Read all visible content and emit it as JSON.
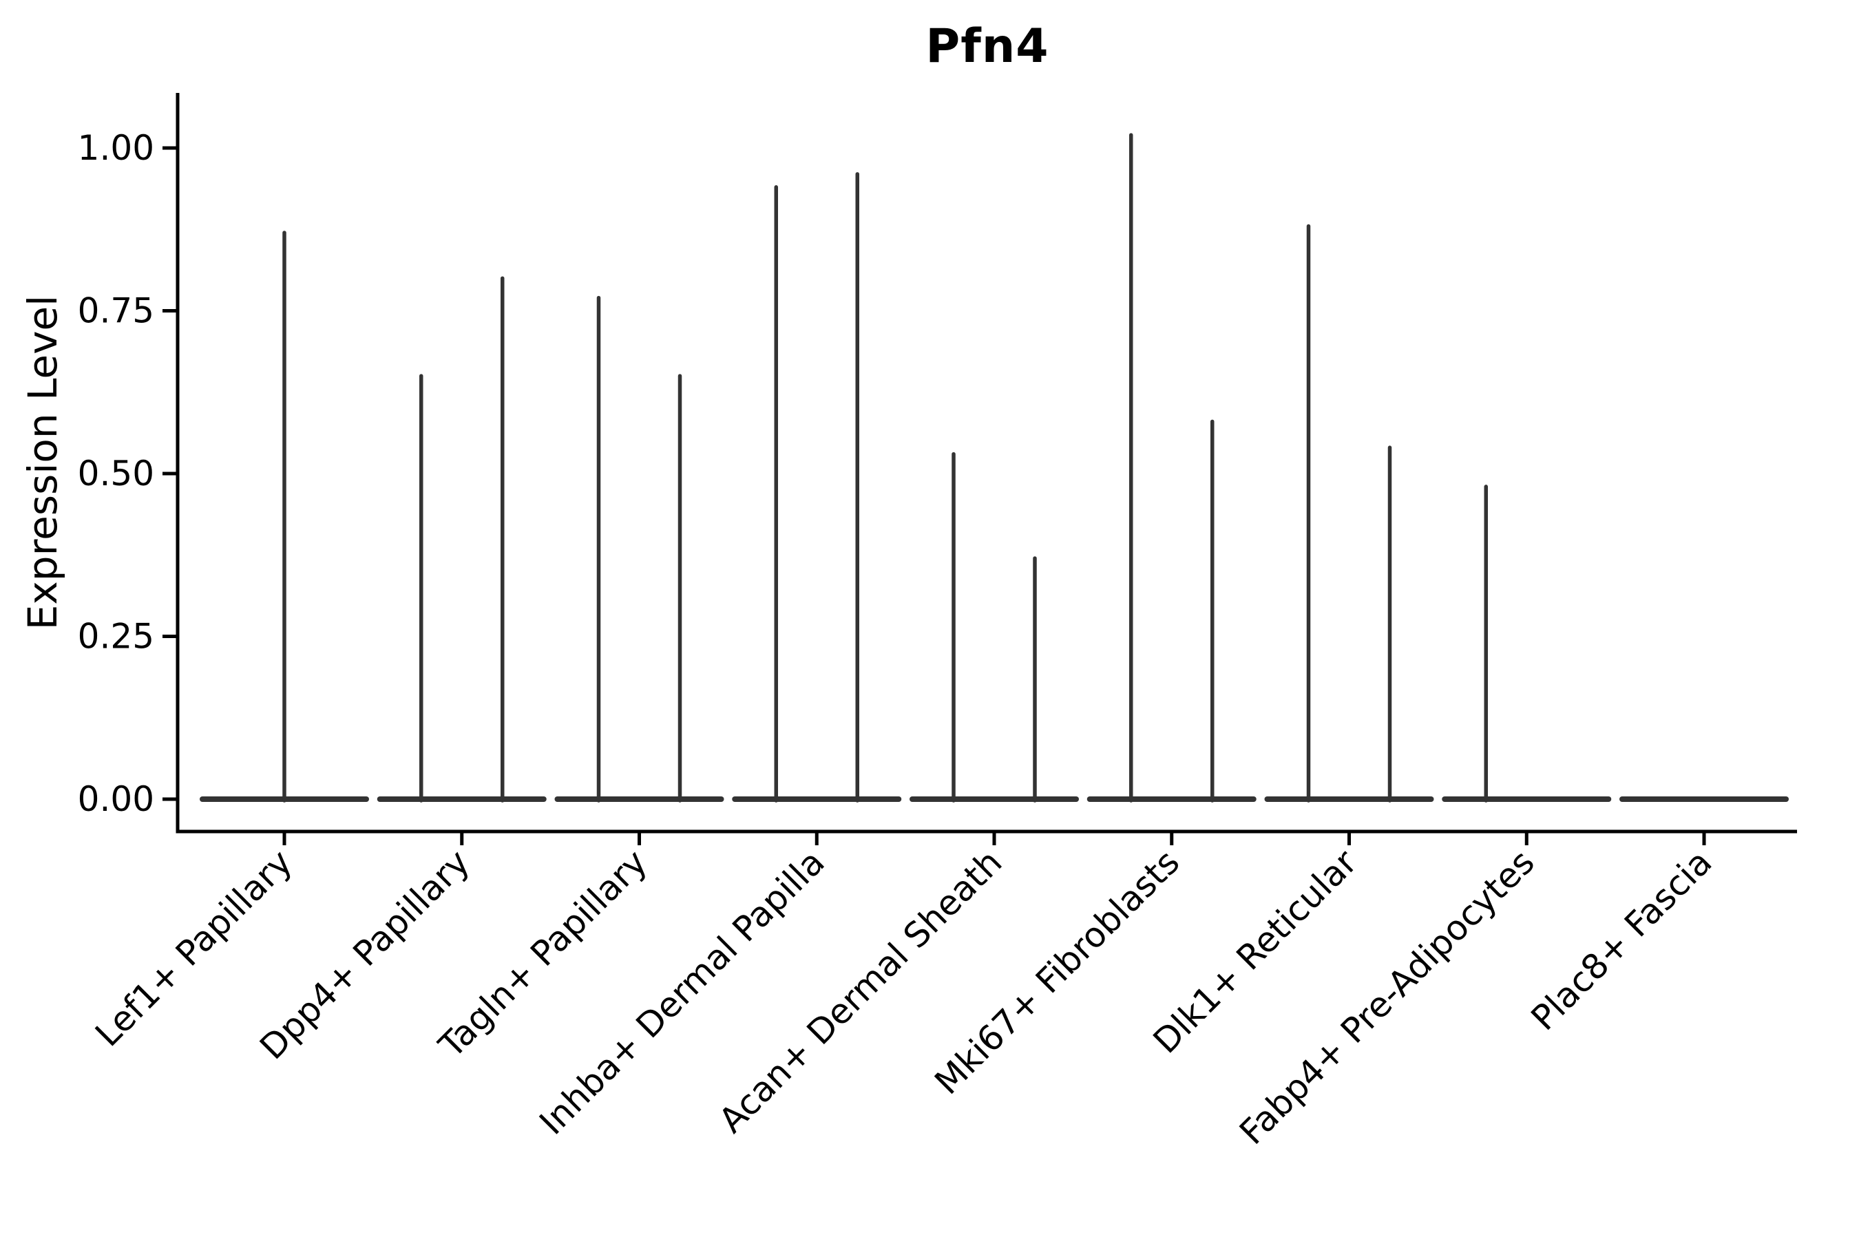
{
  "chart_data": {
    "type": "violin",
    "title": "Pfn4",
    "ylabel": "Expression Level",
    "xlabel": "",
    "legend": "none",
    "grid": false,
    "ylim": [
      -0.05,
      1.08
    ],
    "ytick_values": [
      0.0,
      0.25,
      0.5,
      0.75,
      1.0
    ],
    "ytick_labels": [
      "0.00",
      "0.25",
      "0.50",
      "0.75",
      "1.00"
    ],
    "axis_color": "#000000",
    "violin_color": "#333333",
    "categories": [
      "Lef1+ Papillary",
      "Dpp4+ Papillary",
      "Tagln+ Papillary",
      "Inhba+ Dermal Papilla",
      "Acan+ Dermal Sheath",
      "Mki67+ Fibroblasts",
      "Dlk1+ Reticular",
      "Fabp4+ Pre-Adipocytes",
      "Plac8+ Fascia"
    ],
    "violins": [
      {
        "category": "Lef1+ Papillary",
        "spikes": [
          {
            "slot": "center",
            "max": 0.87
          }
        ]
      },
      {
        "category": "Dpp4+ Papillary",
        "spikes": [
          {
            "slot": "left",
            "max": 0.65
          },
          {
            "slot": "right",
            "max": 0.8
          }
        ]
      },
      {
        "category": "Tagln+ Papillary",
        "spikes": [
          {
            "slot": "left",
            "max": 0.77
          },
          {
            "slot": "right",
            "max": 0.65
          }
        ]
      },
      {
        "category": "Inhba+ Dermal Papilla",
        "spikes": [
          {
            "slot": "left",
            "max": 0.94
          },
          {
            "slot": "right",
            "max": 0.96
          }
        ]
      },
      {
        "category": "Acan+ Dermal Sheath",
        "spikes": [
          {
            "slot": "left",
            "max": 0.53
          },
          {
            "slot": "right",
            "max": 0.37
          }
        ]
      },
      {
        "category": "Mki67+ Fibroblasts",
        "spikes": [
          {
            "slot": "left",
            "max": 1.02
          },
          {
            "slot": "right",
            "max": 0.58
          }
        ]
      },
      {
        "category": "Dlk1+ Reticular",
        "spikes": [
          {
            "slot": "left",
            "max": 0.88
          },
          {
            "slot": "right",
            "max": 0.54
          }
        ]
      },
      {
        "category": "Fabp4+ Pre-Adipocytes",
        "spikes": [
          {
            "slot": "left",
            "max": 0.48
          }
        ]
      },
      {
        "category": "Plac8+ Fascia",
        "spikes": []
      }
    ]
  }
}
